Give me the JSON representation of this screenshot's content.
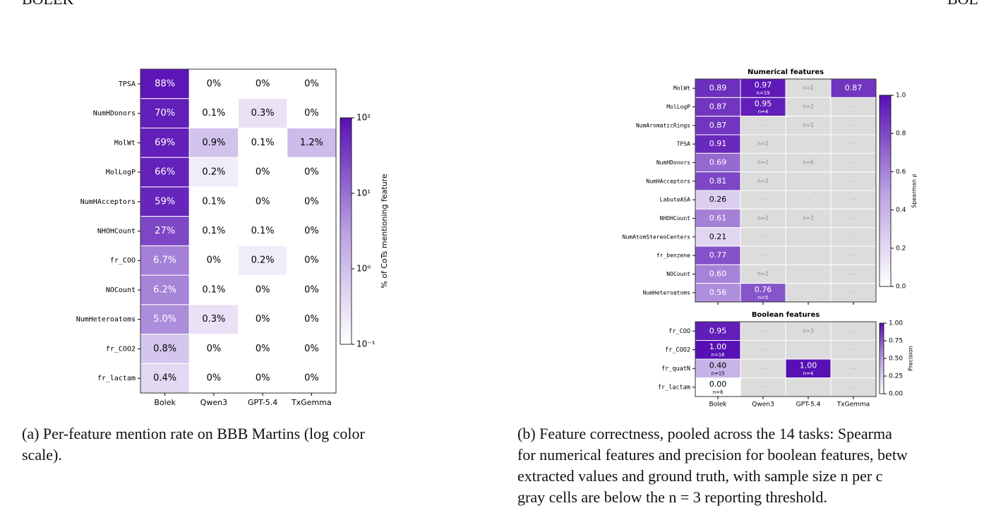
{
  "header": {
    "left": "BOLEK",
    "right": "BOL"
  },
  "chart_data": [
    {
      "type": "heatmap",
      "rows": [
        "TPSA",
        "NumHDonors",
        "MolWt",
        "MolLogP",
        "NumHAcceptors",
        "NHOHCount",
        "fr_COO",
        "NOCount",
        "NumHeteroatoms",
        "fr_COO2",
        "fr_lactam"
      ],
      "columns": [
        "Bolek",
        "Qwen3",
        "GPT-5.4",
        "TxGemma"
      ],
      "values": [
        [
          88,
          0,
          0,
          0
        ],
        [
          70,
          0.1,
          0.3,
          0
        ],
        [
          69,
          0.9,
          0.1,
          1.2
        ],
        [
          66,
          0.2,
          0,
          0
        ],
        [
          59,
          0.1,
          0,
          0
        ],
        [
          27,
          0.1,
          0.1,
          0
        ],
        [
          6.7,
          0,
          0.2,
          0
        ],
        [
          6.2,
          0.1,
          0,
          0
        ],
        [
          5.0,
          0.3,
          0,
          0
        ],
        [
          0.8,
          0,
          0,
          0
        ],
        [
          0.4,
          0,
          0,
          0
        ]
      ],
      "value_labels": [
        [
          "88%",
          "0%",
          "0%",
          "0%"
        ],
        [
          "70%",
          "0.1%",
          "0.3%",
          "0%"
        ],
        [
          "69%",
          "0.9%",
          "0.1%",
          "1.2%"
        ],
        [
          "66%",
          "0.2%",
          "0%",
          "0%"
        ],
        [
          "59%",
          "0.1%",
          "0%",
          "0%"
        ],
        [
          "27%",
          "0.1%",
          "0.1%",
          "0%"
        ],
        [
          "6.7%",
          "0%",
          "0.2%",
          "0%"
        ],
        [
          "6.2%",
          "0.1%",
          "0%",
          "0%"
        ],
        [
          "5.0%",
          "0.3%",
          "0%",
          "0%"
        ],
        [
          "0.8%",
          "0%",
          "0%",
          "0%"
        ],
        [
          "0.4%",
          "0%",
          "0%",
          "0%"
        ]
      ],
      "colorbar": {
        "label": "% of CoTs mentioning feature",
        "log": true,
        "lim": [
          0.1,
          100
        ],
        "ticks": [
          {
            "value": 0.1,
            "label": "10⁻¹"
          },
          {
            "value": 1,
            "label": "10⁰"
          },
          {
            "value": 10,
            "label": "10¹"
          },
          {
            "value": 100,
            "label": "10²"
          }
        ]
      }
    },
    {
      "type": "heatmap",
      "title": "Numerical features",
      "rows": [
        "MolWt",
        "MolLogP",
        "NumAromaticRings",
        "TPSA",
        "NumHDonors",
        "NumHAcceptors",
        "LabuteASA",
        "NHOHCount",
        "NumAtomStereoCenters",
        "fr_benzene",
        "NOCount",
        "NumHeteroatoms"
      ],
      "values": [
        [
          0.89,
          0.97,
          null,
          0.87
        ],
        [
          0.87,
          0.95,
          null,
          null
        ],
        [
          0.87,
          null,
          null,
          null
        ],
        [
          0.91,
          null,
          null,
          null
        ],
        [
          0.69,
          null,
          null,
          null
        ],
        [
          0.81,
          null,
          null,
          null
        ],
        [
          0.26,
          null,
          null,
          null
        ],
        [
          0.61,
          null,
          null,
          null
        ],
        [
          0.21,
          null,
          null,
          null
        ],
        [
          0.77,
          null,
          null,
          null
        ],
        [
          0.6,
          null,
          null,
          null
        ],
        [
          0.56,
          0.76,
          null,
          null
        ]
      ],
      "value_labels": [
        [
          "0.89",
          "0.97",
          null,
          "0.87"
        ],
        [
          "0.87",
          "0.95",
          null,
          null
        ],
        [
          "0.87",
          null,
          null,
          null
        ],
        [
          "0.91",
          null,
          null,
          null
        ],
        [
          "0.69",
          null,
          null,
          null
        ],
        [
          "0.81",
          null,
          null,
          null
        ],
        [
          "0.26",
          null,
          null,
          null
        ],
        [
          "0.61",
          null,
          null,
          null
        ],
        [
          "0.21",
          null,
          null,
          null
        ],
        [
          "0.77",
          null,
          null,
          null
        ],
        [
          "0.60",
          null,
          null,
          null
        ],
        [
          "0.56",
          "0.76",
          null,
          null
        ]
      ],
      "n_labels": [
        [
          null,
          "n=19",
          "n=1",
          null
        ],
        [
          null,
          "n=4",
          "n=2",
          "—"
        ],
        [
          null,
          "—",
          "n=1",
          "—"
        ],
        [
          null,
          "n=1",
          "—",
          "—"
        ],
        [
          null,
          "n=2",
          "n=6",
          "—"
        ],
        [
          null,
          "n=2",
          "—",
          "—"
        ],
        [
          null,
          "—",
          "—",
          "—"
        ],
        [
          null,
          "n=2",
          "n=2",
          "—"
        ],
        [
          null,
          "—",
          "—",
          "—"
        ],
        [
          null,
          "—",
          "—",
          "—"
        ],
        [
          null,
          "n=2",
          "—",
          "—"
        ],
        [
          null,
          "n=5",
          "—",
          "—"
        ]
      ],
      "colorbar": {
        "label": "Spearman ρ",
        "log": false,
        "lim": [
          0,
          1
        ],
        "ticks": [
          {
            "value": 0,
            "label": "0.0"
          },
          0.2,
          0.4,
          0.6,
          0.8,
          {
            "value": 1,
            "label": "1.0"
          }
        ]
      }
    },
    {
      "type": "heatmap",
      "title": "Boolean features",
      "rows": [
        "fr_COO",
        "fr_COO2",
        "fr_quatN",
        "fr_lactam"
      ],
      "columns": [
        "Bolek",
        "Qwen3",
        "GPT-5.4",
        "TxGemma"
      ],
      "values": [
        [
          0.95,
          null,
          null,
          null
        ],
        [
          1,
          null,
          null,
          null
        ],
        [
          0.4,
          null,
          1,
          null
        ],
        [
          0,
          null,
          null,
          null
        ]
      ],
      "value_labels": [
        [
          "0.95",
          null,
          null,
          null
        ],
        [
          "1.00",
          null,
          null,
          null
        ],
        [
          "0.40",
          null,
          "1.00",
          null
        ],
        [
          "0.00",
          null,
          null,
          null
        ]
      ],
      "n_labels": [
        [
          null,
          "—",
          "n=3",
          "—"
        ],
        [
          "n=16",
          "—",
          "—",
          "—"
        ],
        [
          "n=15",
          "—",
          "n=4",
          "—"
        ],
        [
          "n=8",
          "—",
          "—",
          "—"
        ]
      ],
      "colorbar": {
        "label": "Precision",
        "log": false,
        "lim": [
          0,
          1
        ],
        "ticks": [
          {
            "value": 0,
            "label": "0.00"
          },
          0.25,
          {
            "value": 0.5,
            "label": "0.50"
          },
          0.75,
          {
            "value": 1,
            "label": "1.00"
          }
        ]
      }
    }
  ],
  "captions": [
    {
      "lines": [
        "(a) Per-feature mention rate on BBB Martins (log color",
        "scale)."
      ]
    },
    {
      "lines": [
        "(b) Feature correctness, pooled across the 14 tasks: Spearma",
        "for numerical features and precision for boolean features, betw",
        "extracted values and ground truth, with sample size n per c",
        "gray cells are below the n = 3 reporting threshold."
      ]
    }
  ]
}
